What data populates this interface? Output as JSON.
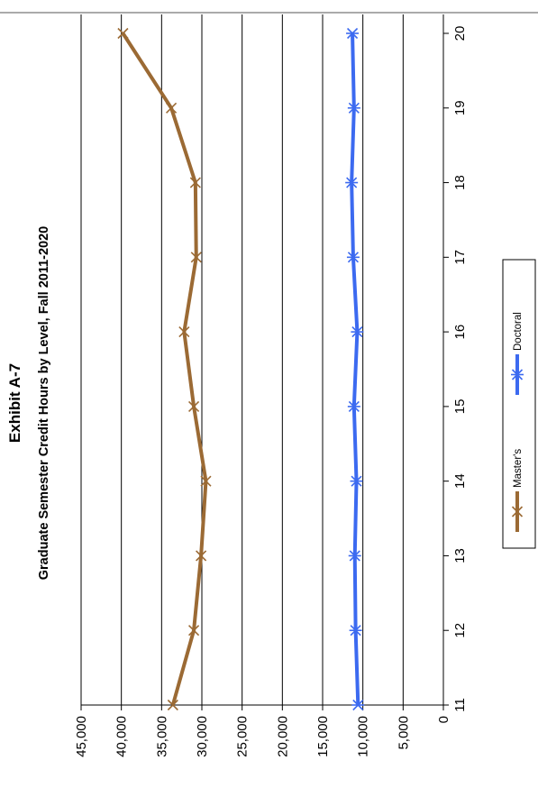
{
  "chart_data": {
    "type": "line",
    "title": "Exhibit A-7",
    "subtitle": "Graduate Semester Credit Hours by Level, Fall 2011-2020",
    "x": [
      11,
      12,
      13,
      14,
      15,
      16,
      17,
      18,
      19,
      20
    ],
    "xticklabels": [
      "11",
      "12",
      "13",
      "14",
      "15",
      "16",
      "17",
      "18",
      "19",
      "20"
    ],
    "yticklabels": [
      "0",
      "5,000",
      "10,000",
      "15,000",
      "20,000",
      "25,000",
      "30,000",
      "35,000",
      "40,000",
      "45,000"
    ],
    "ylim": [
      0,
      45000
    ],
    "ystep": 5000,
    "grid": true,
    "orientation": "rotated 90 degrees counter-clockwise",
    "legend_position": "bottom",
    "series": [
      {
        "name": "Master's",
        "color": "#9b6a34",
        "marker": "x",
        "values": [
          33600,
          31000,
          30100,
          29500,
          31000,
          32200,
          30700,
          30800,
          33800,
          39800
        ]
      },
      {
        "name": "Doctoral",
        "color": "#3c6af0",
        "marker": "asterisk",
        "values": [
          10600,
          10900,
          11000,
          10800,
          11100,
          10700,
          11200,
          11400,
          11100,
          11300
        ]
      }
    ]
  }
}
